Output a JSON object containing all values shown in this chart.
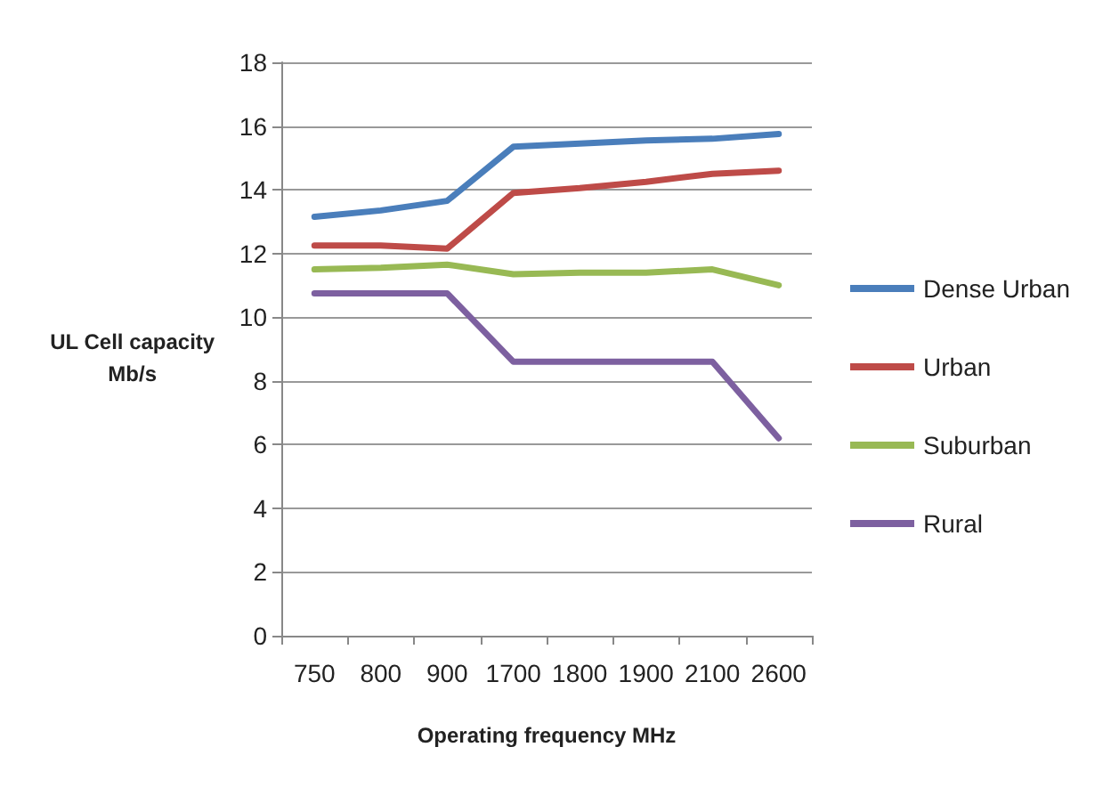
{
  "chart_data": {
    "type": "line",
    "xlabel": "Operating frequency MHz",
    "ylabel": "UL Cell capacity\nMb/s",
    "categories": [
      "750",
      "800",
      "900",
      "1700",
      "1800",
      "1900",
      "2100",
      "2600"
    ],
    "series": [
      {
        "name": "Dense Urban",
        "color": "#4a7ebb",
        "values": [
          13.15,
          13.35,
          13.65,
          15.35,
          15.45,
          15.55,
          15.6,
          15.75
        ]
      },
      {
        "name": "Urban",
        "color": "#be4b48",
        "values": [
          12.25,
          12.25,
          12.15,
          13.9,
          14.05,
          14.25,
          14.5,
          14.6
        ]
      },
      {
        "name": "Suburban",
        "color": "#98b954",
        "values": [
          11.5,
          11.55,
          11.65,
          11.35,
          11.4,
          11.4,
          11.5,
          11.0
        ]
      },
      {
        "name": "Rural",
        "color": "#7d60a0",
        "values": [
          10.75,
          10.75,
          10.75,
          8.6,
          8.6,
          8.6,
          8.6,
          6.2
        ]
      }
    ],
    "ylim": [
      0,
      18
    ],
    "yticks": [
      0,
      2,
      4,
      6,
      8,
      10,
      12,
      14,
      16,
      18
    ],
    "grid": "y",
    "legend": "right",
    "marker": "none",
    "line_style": "solid"
  }
}
